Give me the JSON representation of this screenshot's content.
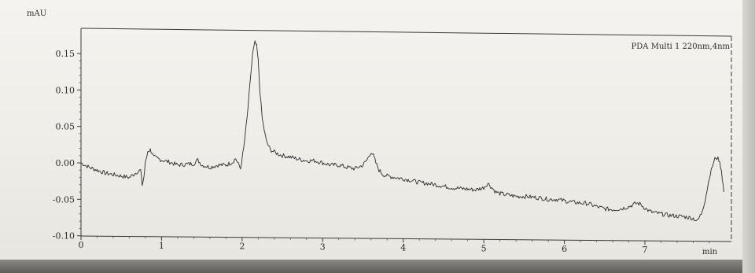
{
  "chart_data": {
    "type": "line",
    "title": "",
    "ylabel": "mAU",
    "xlabel": "min",
    "legend": {
      "text": "PDA Multi 1 220nm,4nm",
      "placement": "top-right"
    },
    "xlim": [
      0,
      8.0
    ],
    "ylim": [
      -0.1,
      0.18
    ],
    "x_ticks": [
      0,
      1,
      2,
      3,
      4,
      5,
      6,
      7
    ],
    "x_tick_labels": [
      "0",
      "1",
      "2",
      "3",
      "4",
      "5",
      "6",
      "7"
    ],
    "y_ticks": [
      -0.1,
      -0.05,
      0.0,
      0.05,
      0.1,
      0.15
    ],
    "y_tick_labels": [
      "-0.10",
      "-0.05",
      "0.00",
      "0.05",
      "0.10",
      "0.15"
    ],
    "grid": false,
    "series": [
      {
        "name": "PDA Multi 1 220nm,4nm",
        "color": "#2b2b2b",
        "x": [
          0.0,
          0.1,
          0.2,
          0.3,
          0.4,
          0.5,
          0.6,
          0.65,
          0.7,
          0.74,
          0.76,
          0.78,
          0.8,
          0.83,
          0.86,
          0.88,
          0.9,
          0.95,
          1.0,
          1.1,
          1.2,
          1.3,
          1.4,
          1.45,
          1.5,
          1.6,
          1.7,
          1.8,
          1.88,
          1.92,
          1.98,
          2.02,
          2.06,
          2.1,
          2.13,
          2.16,
          2.18,
          2.2,
          2.22,
          2.25,
          2.3,
          2.35,
          2.4,
          2.45,
          2.5,
          2.6,
          2.7,
          2.8,
          2.9,
          3.0,
          3.1,
          3.2,
          3.3,
          3.4,
          3.5,
          3.55,
          3.6,
          3.63,
          3.66,
          3.7,
          3.75,
          3.8,
          3.9,
          4.0,
          4.1,
          4.2,
          4.3,
          4.4,
          4.5,
          4.6,
          4.7,
          4.8,
          4.9,
          5.0,
          5.05,
          5.1,
          5.15,
          5.2,
          5.3,
          5.4,
          5.5,
          5.6,
          5.7,
          5.8,
          5.9,
          6.0,
          6.1,
          6.2,
          6.3,
          6.4,
          6.5,
          6.6,
          6.7,
          6.8,
          6.9,
          6.95,
          7.0,
          7.05,
          7.1,
          7.2,
          7.3,
          7.4,
          7.5,
          7.6,
          7.65,
          7.7,
          7.75,
          7.8,
          7.85,
          7.88,
          7.92,
          7.95,
          7.98
        ],
        "y": [
          0.0,
          -0.006,
          -0.01,
          -0.014,
          -0.016,
          -0.018,
          -0.02,
          -0.016,
          -0.012,
          -0.01,
          -0.03,
          -0.02,
          0.0,
          0.016,
          0.018,
          0.014,
          0.008,
          0.006,
          0.004,
          0.001,
          -0.003,
          -0.002,
          -0.001,
          0.004,
          -0.003,
          -0.006,
          -0.003,
          -0.003,
          0.001,
          0.006,
          -0.008,
          0.02,
          0.06,
          0.11,
          0.15,
          0.165,
          0.16,
          0.14,
          0.1,
          0.06,
          0.03,
          0.018,
          0.015,
          0.012,
          0.01,
          0.008,
          0.005,
          0.003,
          0.003,
          0.0,
          -0.003,
          -0.003,
          -0.006,
          -0.008,
          -0.003,
          0.004,
          0.015,
          0.01,
          0.0,
          -0.01,
          -0.016,
          -0.018,
          -0.02,
          -0.022,
          -0.024,
          -0.027,
          -0.028,
          -0.03,
          -0.032,
          -0.034,
          -0.035,
          -0.036,
          -0.037,
          -0.034,
          -0.028,
          -0.034,
          -0.04,
          -0.042,
          -0.044,
          -0.046,
          -0.046,
          -0.047,
          -0.048,
          -0.05,
          -0.05,
          -0.052,
          -0.054,
          -0.055,
          -0.056,
          -0.06,
          -0.063,
          -0.064,
          -0.063,
          -0.06,
          -0.055,
          -0.057,
          -0.062,
          -0.066,
          -0.068,
          -0.07,
          -0.072,
          -0.073,
          -0.074,
          -0.076,
          -0.08,
          -0.07,
          -0.05,
          -0.02,
          0.0,
          0.008,
          0.004,
          -0.01,
          -0.04
        ]
      }
    ]
  }
}
